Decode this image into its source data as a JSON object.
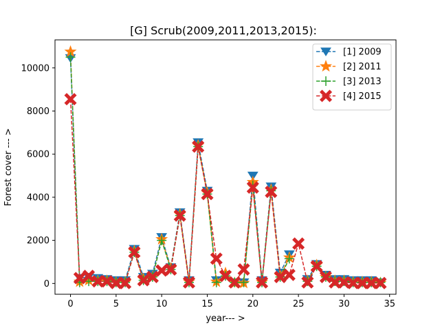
{
  "chart_data": {
    "type": "line",
    "title": "[G] Scrub(2009,2011,2013,2015):",
    "xlabel": "year--- >",
    "ylabel": "Forest cover --- >",
    "xlim": [
      -1.7,
      35.7
    ],
    "ylim": [
      -500,
      11300
    ],
    "xticks": [
      0,
      5,
      10,
      15,
      20,
      25,
      30,
      35
    ],
    "yticks": [
      0,
      2000,
      4000,
      6000,
      8000,
      10000
    ],
    "grid": false,
    "legend_position": "top-right",
    "x": [
      0,
      1,
      2,
      3,
      4,
      5,
      6,
      7,
      8,
      9,
      10,
      11,
      12,
      13,
      14,
      15,
      16,
      17,
      18,
      19,
      20,
      21,
      22,
      23,
      24,
      25,
      26,
      27,
      28,
      29,
      30,
      31,
      32,
      33,
      34
    ],
    "series": [
      {
        "name": "[1] 2009",
        "color": "#1f77b4",
        "marker": "triangle-down",
        "values": [
          10450,
          250,
          300,
          250,
          200,
          150,
          150,
          1600,
          300,
          450,
          2150,
          750,
          3300,
          150,
          6550,
          4300,
          150,
          400,
          50,
          50,
          5000,
          150,
          4500,
          500,
          1350,
          null,
          200,
          900,
          400,
          200,
          200,
          150,
          150,
          150,
          50
        ]
      },
      {
        "name": "[2] 2011",
        "color": "#ff7f0e",
        "marker": "star",
        "values": [
          10750,
          80,
          150,
          120,
          120,
          50,
          50,
          1500,
          200,
          300,
          2050,
          700,
          3200,
          80,
          6400,
          4200,
          80,
          480,
          20,
          20,
          4700,
          60,
          4350,
          350,
          1200,
          null,
          120,
          850,
          300,
          120,
          120,
          60,
          60,
          60,
          20
        ]
      },
      {
        "name": "[3] 2013",
        "color": "#2ca02c",
        "marker": "plus",
        "values": [
          10500,
          50,
          100,
          100,
          100,
          50,
          50,
          1450,
          150,
          300,
          2000,
          650,
          3150,
          50,
          6350,
          4150,
          50,
          350,
          50,
          50,
          4550,
          50,
          4300,
          300,
          1150,
          null,
          100,
          800,
          300,
          100,
          100,
          50,
          50,
          50,
          50
        ]
      },
      {
        "name": "[4] 2015",
        "color": "#d62728",
        "marker": "x-filled",
        "values": [
          8550,
          250,
          350,
          100,
          100,
          20,
          20,
          1450,
          150,
          300,
          600,
          650,
          3150,
          50,
          6350,
          4150,
          1150,
          350,
          50,
          650,
          4450,
          50,
          4250,
          300,
          400,
          1850,
          50,
          800,
          300,
          50,
          50,
          20,
          20,
          20,
          20
        ]
      }
    ]
  }
}
